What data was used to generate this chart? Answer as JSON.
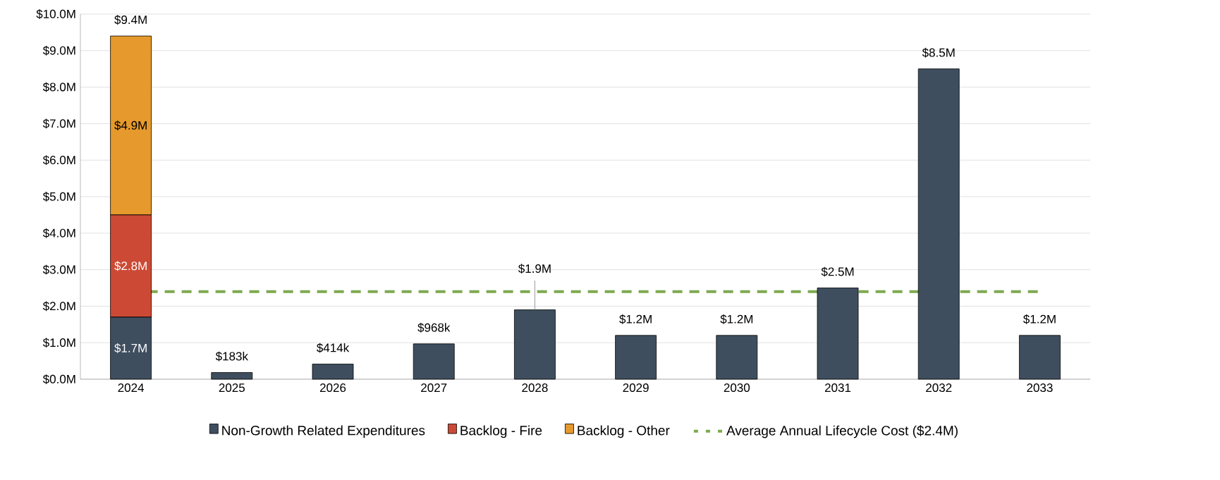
{
  "chart_data": {
    "type": "bar",
    "stacked": true,
    "categories": [
      "2024",
      "2025",
      "2026",
      "2027",
      "2028",
      "2029",
      "2030",
      "2031",
      "2032",
      "2033"
    ],
    "series": [
      {
        "name": "Non-Growth Related Expenditures",
        "color": "#3f4e5f",
        "values": [
          1.7,
          0.183,
          0.414,
          0.968,
          1.9,
          1.2,
          1.2,
          2.5,
          8.5,
          1.2
        ],
        "value_labels": [
          "$1.7M",
          null,
          null,
          null,
          null,
          null,
          null,
          null,
          null,
          null
        ]
      },
      {
        "name": "Backlog - Fire",
        "color": "#cc4a35",
        "values": [
          2.8,
          0,
          0,
          0,
          0,
          0,
          0,
          0,
          0,
          0
        ],
        "value_labels": [
          "$2.8M",
          null,
          null,
          null,
          null,
          null,
          null,
          null,
          null,
          null
        ]
      },
      {
        "name": "Backlog - Other",
        "color": "#e69a2d",
        "values": [
          4.9,
          0,
          0,
          0,
          0,
          0,
          0,
          0,
          0,
          0
        ],
        "value_labels": [
          "$4.9M",
          null,
          null,
          null,
          null,
          null,
          null,
          null,
          null,
          null
        ]
      }
    ],
    "totals": [
      "$9.4M",
      "$183k",
      "$414k",
      "$968k",
      "$1.9M",
      "$1.2M",
      "$1.2M",
      "$2.5M",
      "$8.5M",
      "$1.2M"
    ],
    "ref_lines": [
      {
        "axis": "y",
        "value": 2.4,
        "label": "Average Annual Lifecycle Cost ($2.4M)",
        "color": "#7ea94f",
        "line_style": "dashed"
      }
    ],
    "ylim": [
      0,
      10
    ],
    "yticks": [
      {
        "value": 0,
        "label": "$0.0M"
      },
      {
        "value": 1,
        "label": "$1.0M"
      },
      {
        "value": 2,
        "label": "$2.0M"
      },
      {
        "value": 3,
        "label": "$3.0M"
      },
      {
        "value": 4,
        "label": "$4.0M"
      },
      {
        "value": 5,
        "label": "$5.0M"
      },
      {
        "value": 6,
        "label": "$6.0M"
      },
      {
        "value": 7,
        "label": "$7.0M"
      },
      {
        "value": 8,
        "label": "$8.0M"
      },
      {
        "value": 9,
        "label": "$9.0M"
      },
      {
        "value": 10,
        "label": "$10.0M"
      }
    ],
    "grid": "y",
    "legend": "bottom"
  }
}
